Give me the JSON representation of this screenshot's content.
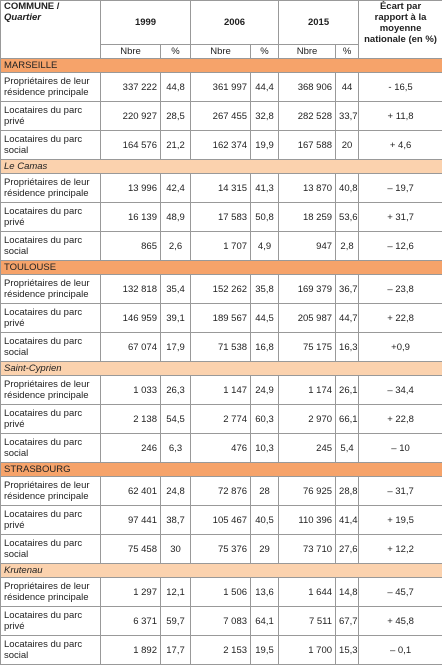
{
  "header": {
    "commune": "COMMUNE /",
    "quartier": "Quartier",
    "years": [
      "1999",
      "2006",
      "2015"
    ],
    "ecart": "Écart par rapport à la moyenne nationale (en %)",
    "sub": [
      "Nbre",
      "%",
      "Nbre",
      "%",
      "Nbre",
      "%"
    ]
  },
  "sections": [
    {
      "name": "MARSEILLE",
      "style": "city",
      "rows": [
        {
          "label": "Propriétaires de leur résidence principale",
          "cells": [
            "337 222",
            "44,8",
            "361 997",
            "44,4",
            "368 906",
            "44",
            "- 16,5"
          ]
        },
        {
          "label": "Locataires du parc privé",
          "cells": [
            "220 927",
            "28,5",
            "267 455",
            "32,8",
            "282 528",
            "33,7",
            "+ 11,8"
          ]
        },
        {
          "label": "Locataires du parc social",
          "cells": [
            "164 576",
            "21,2",
            "162 374",
            "19,9",
            "167 588",
            "20",
            "+ 4,6"
          ]
        }
      ]
    },
    {
      "name": "Le Camas",
      "style": "district",
      "rows": [
        {
          "label": "Propriétaires de leur résidence principale",
          "cells": [
            "13 996",
            "42,4",
            "14 315",
            "41,3",
            "13 870",
            "40,8",
            "– 19,7"
          ]
        },
        {
          "label": "Locataires du parc privé",
          "cells": [
            "16 139",
            "48,9",
            "17 583",
            "50,8",
            "18 259",
            "53,6",
            "+ 31,7"
          ]
        },
        {
          "label": "Locataires du parc social",
          "cells": [
            "865",
            "2,6",
            "1 707",
            "4,9",
            "947",
            "2,8",
            "– 12,6"
          ]
        }
      ]
    },
    {
      "name": "TOULOUSE",
      "style": "city",
      "rows": [
        {
          "label": "Propriétaires de leur résidence principale",
          "cells": [
            "132 818",
            "35,4",
            "152 262",
            "35,8",
            "169 379",
            "36,7",
            "– 23,8"
          ]
        },
        {
          "label": "Locataires du parc privé",
          "cells": [
            "146 959",
            "39,1",
            "189 567",
            "44,5",
            "205 987",
            "44,7",
            "+ 22,8"
          ]
        },
        {
          "label": "Locataires du parc social",
          "cells": [
            "67 074",
            "17,9",
            "71 538",
            "16,8",
            "75 175",
            "16,3",
            "+0,9"
          ]
        }
      ]
    },
    {
      "name": "Saint-Cyprien",
      "style": "district",
      "rows": [
        {
          "label": "Propriétaires de leur résidence principale",
          "cells": [
            "1 033",
            "26,3",
            "1 147",
            "24,9",
            "1 174",
            "26,1",
            "– 34,4"
          ]
        },
        {
          "label": "Locataires du parc privé",
          "cells": [
            "2 138",
            "54,5",
            "2 774",
            "60,3",
            "2 970",
            "66,1",
            "+ 22,8"
          ]
        },
        {
          "label": "Locataires du parc social",
          "cells": [
            "246",
            "6,3",
            "476",
            "10,3",
            "245",
            "5,4",
            "– 10"
          ]
        }
      ]
    },
    {
      "name": "STRASBOURG",
      "style": "city",
      "rows": [
        {
          "label": "Propriétaires de leur résidence principale",
          "cells": [
            "62 401",
            "24,8",
            "72 876",
            "28",
            "76 925",
            "28,8",
            "– 31,7"
          ]
        },
        {
          "label": "Locataires du parc privé",
          "cells": [
            "97 441",
            "38,7",
            "105 467",
            "40,5",
            "110 396",
            "41,4",
            "+ 19,5"
          ]
        },
        {
          "label": "Locataires du parc social",
          "cells": [
            "75 458",
            "30",
            "75 376",
            "29",
            "73 710",
            "27,6",
            "+ 12,2"
          ]
        }
      ]
    },
    {
      "name": "Krutenau",
      "style": "district",
      "rows": [
        {
          "label": "Propriétaires de leur résidence principale",
          "cells": [
            "1 297",
            "12,1",
            "1 506",
            "13,6",
            "1 644",
            "14,8",
            "– 45,7"
          ]
        },
        {
          "label": "Locataires du parc privé",
          "cells": [
            "6 371",
            "59,7",
            "7 083",
            "64,1",
            "7 511",
            "67,7",
            "+ 45,8"
          ]
        },
        {
          "label": "Locataires du parc social",
          "cells": [
            "1 892",
            "17,7",
            "2 153",
            "19,5",
            "1 700",
            "15,3",
            "– 0,1"
          ]
        }
      ]
    }
  ]
}
